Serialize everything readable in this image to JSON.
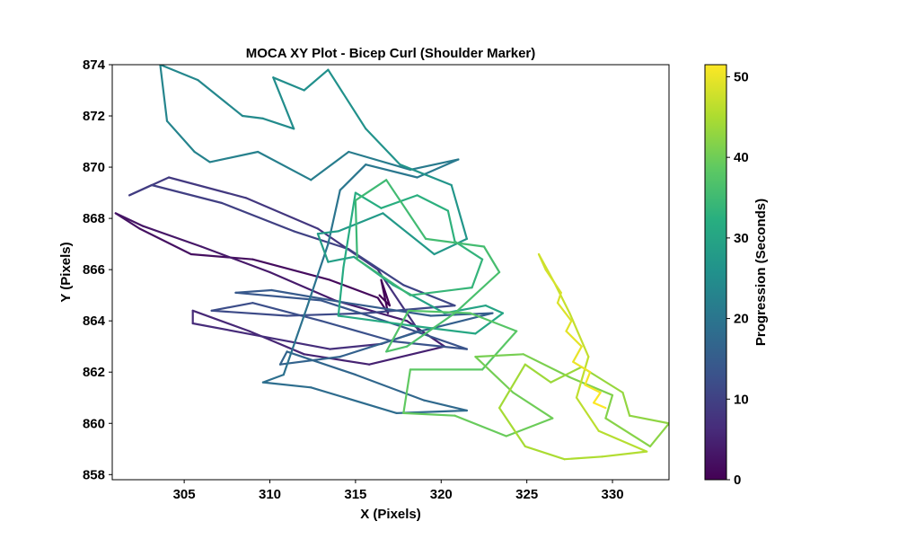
{
  "chart_data": {
    "type": "line",
    "title": "MOCA XY Plot - Bicep Curl (Shoulder Marker)",
    "xlabel": "X (Pixels)",
    "ylabel": "Y (Pixels)",
    "xlim": [
      300.8,
      333.3
    ],
    "ylim": [
      857.8,
      874.0
    ],
    "xticks": [
      "305",
      "310",
      "315",
      "320",
      "325",
      "330"
    ],
    "yticks": [
      "858",
      "860",
      "862",
      "864",
      "866",
      "868",
      "870",
      "872",
      "874"
    ],
    "grid": false,
    "colormap": "viridis",
    "colorbar": {
      "label": "Progression (Seconds)",
      "range": [
        0,
        51.5
      ],
      "ticks": [
        "0",
        "10",
        "20",
        "30",
        "40",
        "50"
      ]
    },
    "series": [
      {
        "points": [
          [
            316.4,
            865.0
          ],
          [
            317.0,
            864.6
          ],
          [
            316.5,
            865.6
          ],
          [
            316.9,
            864.3
          ],
          [
            316.3,
            864.9
          ],
          [
            313.5,
            865.6
          ],
          [
            309.0,
            866.4
          ],
          [
            305.4,
            866.6
          ],
          [
            302.4,
            867.6
          ],
          [
            301.0,
            868.2
          ],
          [
            302.6,
            867.7
          ],
          [
            306.0,
            866.9
          ],
          [
            310.0,
            865.9
          ],
          [
            313.8,
            864.8
          ],
          [
            318.0,
            864.0
          ],
          [
            320.2,
            863.0
          ],
          [
            315.8,
            862.3
          ],
          [
            312.0,
            862.7
          ],
          [
            308.8,
            863.6
          ],
          [
            305.5,
            864.4
          ],
          [
            305.5,
            863.9
          ],
          [
            309.5,
            863.4
          ],
          [
            313.5,
            862.9
          ],
          [
            316.5,
            863.1
          ],
          [
            318.7,
            863.6
          ],
          [
            316.3,
            866.0
          ],
          [
            312.8,
            867.6
          ],
          [
            308.6,
            868.8
          ],
          [
            304.1,
            869.6
          ],
          [
            301.8,
            868.9
          ],
          [
            303.1,
            869.3
          ],
          [
            307.2,
            868.6
          ],
          [
            311.4,
            867.5
          ],
          [
            314.6,
            866.8
          ],
          [
            317.8,
            865.4
          ],
          [
            320.8,
            864.6
          ],
          [
            315.6,
            864.3
          ],
          [
            311.0,
            864.2
          ],
          [
            306.6,
            864.4
          ],
          [
            309.0,
            864.7
          ],
          [
            313.0,
            864.0
          ],
          [
            317.2,
            863.2
          ],
          [
            321.5,
            862.9
          ],
          [
            317.6,
            863.8
          ],
          [
            313.0,
            864.8
          ],
          [
            308.0,
            865.1
          ],
          [
            310.1,
            865.2
          ],
          [
            314.5,
            864.7
          ],
          [
            319.4,
            864.2
          ],
          [
            323.0,
            864.3
          ],
          [
            318.8,
            863.6
          ],
          [
            314.1,
            862.6
          ],
          [
            310.6,
            862.3
          ],
          [
            311.0,
            862.8
          ],
          [
            315.0,
            861.9
          ],
          [
            319.0,
            860.9
          ],
          [
            321.5,
            860.5
          ],
          [
            317.4,
            860.4
          ],
          [
            312.4,
            861.4
          ],
          [
            309.6,
            861.6
          ],
          [
            310.8,
            861.9
          ],
          [
            312.2,
            864.6
          ],
          [
            313.4,
            867.0
          ],
          [
            314.1,
            869.1
          ],
          [
            315.6,
            870.1
          ],
          [
            318.6,
            869.6
          ],
          [
            321.0,
            870.3
          ],
          [
            318.2,
            869.9
          ],
          [
            314.6,
            870.6
          ],
          [
            312.4,
            869.5
          ],
          [
            309.3,
            870.6
          ],
          [
            306.5,
            870.2
          ],
          [
            305.6,
            870.6
          ],
          [
            304.0,
            871.8
          ],
          [
            303.6,
            874.0
          ],
          [
            305.8,
            873.4
          ],
          [
            308.4,
            872.0
          ],
          [
            309.6,
            871.9
          ],
          [
            311.4,
            871.5
          ],
          [
            310.2,
            873.5
          ],
          [
            312.0,
            873.0
          ],
          [
            313.4,
            873.8
          ],
          [
            315.6,
            871.5
          ],
          [
            317.6,
            870.1
          ],
          [
            320.6,
            869.3
          ],
          [
            321.5,
            867.2
          ],
          [
            319.6,
            866.6
          ],
          [
            316.6,
            868.2
          ],
          [
            314.0,
            867.5
          ],
          [
            312.8,
            867.4
          ],
          [
            313.4,
            866.3
          ],
          [
            314.9,
            866.5
          ],
          [
            317.2,
            865.4
          ],
          [
            320.2,
            864.3
          ],
          [
            322.6,
            864.6
          ],
          [
            323.6,
            864.3
          ],
          [
            322.0,
            863.5
          ],
          [
            318.4,
            863.8
          ],
          [
            314.0,
            864.2
          ],
          [
            314.3,
            866.1
          ],
          [
            315.0,
            869.0
          ],
          [
            316.5,
            868.4
          ],
          [
            318.6,
            868.9
          ],
          [
            320.4,
            868.3
          ],
          [
            320.8,
            867.1
          ],
          [
            322.4,
            866.4
          ],
          [
            321.8,
            865.3
          ],
          [
            318.2,
            865.0
          ],
          [
            315.1,
            866.4
          ],
          [
            315.0,
            868.7
          ],
          [
            316.8,
            869.5
          ],
          [
            319.1,
            867.2
          ],
          [
            322.5,
            866.9
          ],
          [
            323.4,
            865.9
          ],
          [
            320.8,
            864.3
          ],
          [
            318.0,
            863.0
          ],
          [
            316.8,
            862.8
          ],
          [
            318.1,
            864.4
          ],
          [
            321.7,
            864.3
          ],
          [
            324.4,
            863.6
          ],
          [
            322.4,
            862.1
          ],
          [
            318.2,
            862.1
          ],
          [
            317.8,
            860.4
          ],
          [
            320.8,
            860.3
          ],
          [
            323.8,
            859.5
          ],
          [
            326.5,
            860.2
          ],
          [
            324.2,
            861.2
          ],
          [
            322.0,
            862.6
          ],
          [
            324.8,
            862.7
          ],
          [
            327.5,
            861.8
          ],
          [
            330.0,
            861.1
          ],
          [
            329.6,
            860.2
          ],
          [
            332.2,
            859.1
          ],
          [
            333.3,
            860.0
          ],
          [
            331.0,
            860.3
          ],
          [
            330.6,
            861.2
          ],
          [
            328.2,
            862.2
          ],
          [
            326.4,
            861.6
          ],
          [
            324.9,
            862.3
          ],
          [
            323.4,
            860.6
          ],
          [
            324.9,
            859.1
          ],
          [
            327.2,
            858.6
          ],
          [
            329.4,
            858.7
          ],
          [
            332.0,
            858.9
          ],
          [
            329.2,
            859.7
          ],
          [
            327.9,
            861.0
          ],
          [
            328.6,
            862.6
          ],
          [
            327.5,
            864.3
          ],
          [
            326.6,
            865.5
          ],
          [
            325.7,
            866.6
          ],
          [
            326.1,
            866.0
          ],
          [
            327.0,
            865.1
          ],
          [
            326.8,
            864.7
          ],
          [
            327.6,
            864.0
          ],
          [
            327.3,
            863.6
          ],
          [
            328.2,
            863.0
          ],
          [
            327.7,
            862.4
          ],
          [
            328.7,
            862.0
          ],
          [
            328.4,
            861.5
          ],
          [
            329.3,
            861.2
          ],
          [
            328.9,
            860.8
          ],
          [
            329.6,
            860.6
          ]
        ]
      }
    ]
  }
}
